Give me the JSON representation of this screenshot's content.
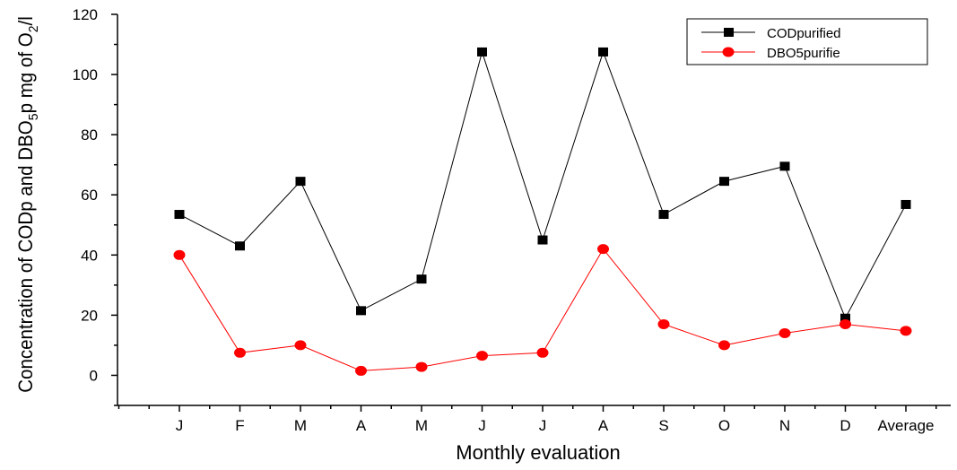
{
  "chart_data": {
    "type": "line",
    "xlabel": "Monthly evaluation",
    "ylabel": "Concentration of CODp and DBO5p mg of O2/l",
    "ylabel_parts": {
      "prefix": "Concentration of CODp and DBO",
      "sub1": "5",
      "mid": "p mg of O",
      "sub2": "2",
      "suffix": "/l"
    },
    "categories": [
      "J",
      "F",
      "M",
      "A",
      "M",
      "J",
      "J",
      "A",
      "S",
      "O",
      "N",
      "D",
      "Average"
    ],
    "ylim": [
      -10,
      120
    ],
    "yticks": [
      0,
      20,
      40,
      60,
      80,
      100,
      120
    ],
    "grid": false,
    "legend_position": "top-right",
    "series": [
      {
        "name": "CODpurified",
        "color": "#000000",
        "marker": "square",
        "values": [
          53.5,
          43,
          64.5,
          21.5,
          32,
          107.5,
          45,
          107.5,
          53.5,
          64.5,
          69.5,
          19,
          56.8
        ]
      },
      {
        "name": "DBO5purifie",
        "color": "#ff0000",
        "marker": "circle",
        "values": [
          40,
          7.5,
          10,
          1.5,
          2.8,
          6.5,
          7.5,
          42,
          17,
          10,
          14,
          17,
          14.8
        ]
      }
    ]
  }
}
